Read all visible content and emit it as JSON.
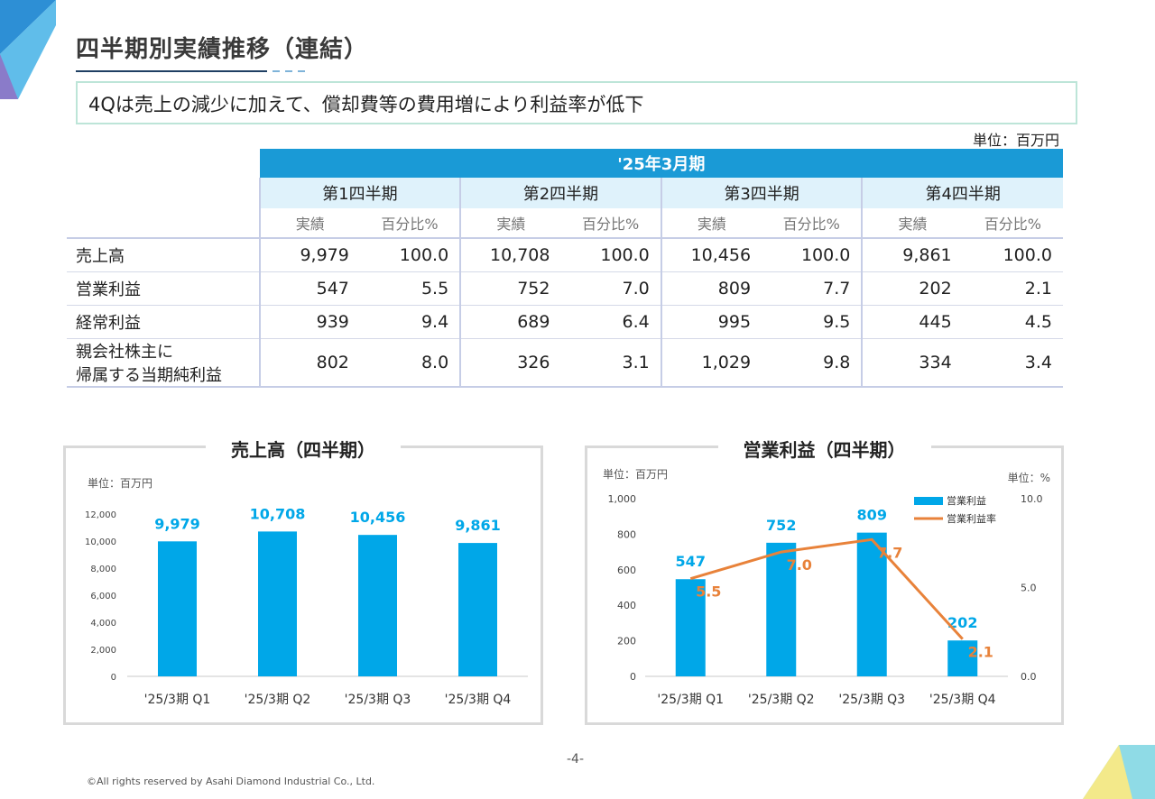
{
  "title": "四半期別実績推移（連結）",
  "summary": "4Qは売上の減少に加えて、償却費等の費用増により利益率が低下",
  "unit": "単位：百万円",
  "table": {
    "period": "'25年3月期",
    "quarters": [
      "第1四半期",
      "第2四半期",
      "第3四半期",
      "第4四半期"
    ],
    "sub_headers": [
      "実績",
      "百分比%"
    ],
    "rows": [
      {
        "label": "売上高",
        "cells": [
          "9,979",
          "100.0",
          "10,708",
          "100.0",
          "10,456",
          "100.0",
          "9,861",
          "100.0"
        ]
      },
      {
        "label": "営業利益",
        "cells": [
          "547",
          "5.5",
          "752",
          "7.0",
          "809",
          "7.7",
          "202",
          "2.1"
        ]
      },
      {
        "label": "経常利益",
        "cells": [
          "939",
          "9.4",
          "689",
          "6.4",
          "995",
          "9.5",
          "445",
          "4.5"
        ]
      },
      {
        "label_line1": "親会社株主に",
        "label_line2": "帰属する当期純利益",
        "cells": [
          "802",
          "8.0",
          "326",
          "3.1",
          "1,029",
          "9.8",
          "334",
          "3.4"
        ]
      }
    ]
  },
  "chart_data": [
    {
      "type": "bar",
      "title": "売上高（四半期）",
      "unit_label": "単位：百万円",
      "categories": [
        "'25/3期 Q1",
        "'25/3期 Q2",
        "'25/3期 Q3",
        "'25/3期 Q4"
      ],
      "values": [
        9979,
        10708,
        10456,
        9861
      ],
      "value_labels": [
        "9,979",
        "10,708",
        "10,456",
        "9,861"
      ],
      "yticks": [
        "0",
        "2,000",
        "4,000",
        "6,000",
        "8,000",
        "10,000",
        "12,000"
      ],
      "ylim": [
        0,
        12000
      ],
      "color": "#00a7e8"
    },
    {
      "type": "bar",
      "title": "営業利益（四半期）",
      "unit_label_left": "単位：百万円",
      "unit_label_right": "単位：%",
      "categories": [
        "'25/3期 Q1",
        "'25/3期 Q2",
        "'25/3期 Q3",
        "'25/3期 Q4"
      ],
      "series": [
        {
          "name": "営業利益",
          "values": [
            547,
            752,
            809,
            202
          ],
          "labels": [
            "547",
            "752",
            "809",
            "202"
          ],
          "color": "#00a7e8"
        },
        {
          "name": "営業利益率",
          "type": "line",
          "values": [
            5.5,
            7.0,
            7.7,
            2.1
          ],
          "labels": [
            "5.5",
            "7.0",
            "7.7",
            "2.1"
          ],
          "color": "#e8823a"
        }
      ],
      "yticks_left": [
        "0",
        "200",
        "400",
        "600",
        "800",
        "1,000"
      ],
      "ylim_left": [
        0,
        1000
      ],
      "yticks_right": [
        "0.0",
        "5.0",
        "10.0"
      ],
      "ylim_right": [
        0,
        10
      ],
      "legend": "top-right"
    }
  ],
  "page_number": "-4-",
  "copyright": "©All rights reserved by Asahi Diamond Industrial Co., Ltd."
}
